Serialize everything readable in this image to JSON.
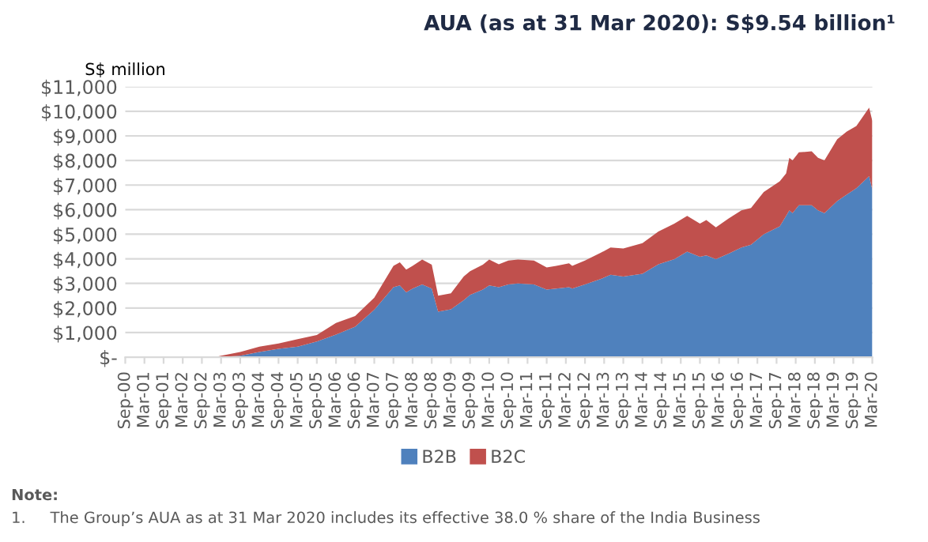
{
  "chart_data": {
    "type": "area",
    "title": "AUA (as at 31 Mar 2020): S$9.54 billion¹",
    "ylabel": "S$ million",
    "stacked": true,
    "x": [
      "2000-09",
      "2003-01",
      "2003-03",
      "2003-09",
      "2004-03",
      "2004-09",
      "2005-03",
      "2005-09",
      "2006-03",
      "2006-09",
      "2007-03",
      "2007-09",
      "2007-11",
      "2008-01",
      "2008-03",
      "2008-06",
      "2008-09",
      "2008-11",
      "2009-03",
      "2009-07",
      "2009-09",
      "2010-01",
      "2010-03",
      "2010-06",
      "2010-09",
      "2010-12",
      "2011-05",
      "2011-09",
      "2011-12",
      "2012-04",
      "2012-05",
      "2012-09",
      "2013-02",
      "2013-05",
      "2013-09",
      "2014-03",
      "2014-08",
      "2015-01",
      "2015-05",
      "2015-09",
      "2015-11",
      "2016-02",
      "2016-06",
      "2016-10",
      "2017-01",
      "2017-05",
      "2017-10",
      "2017-12",
      "2018-01",
      "2018-02",
      "2018-04",
      "2018-08",
      "2018-10",
      "2018-12",
      "2019-04",
      "2019-07",
      "2019-10",
      "2020-02",
      "2020-03"
    ],
    "series": [
      {
        "name": "B2B",
        "color": "#4f81bd",
        "values": [
          0,
          0,
          10,
          60,
          210,
          340,
          430,
          640,
          920,
          1240,
          1930,
          2850,
          2920,
          2640,
          2790,
          2960,
          2790,
          1850,
          1950,
          2320,
          2530,
          2750,
          2920,
          2850,
          2960,
          3000,
          2960,
          2750,
          2790,
          2850,
          2790,
          2960,
          3180,
          3350,
          3280,
          3390,
          3780,
          3990,
          4290,
          4080,
          4140,
          3990,
          4210,
          4460,
          4570,
          5000,
          5320,
          5750,
          5970,
          5860,
          6180,
          6180,
          5970,
          5860,
          6350,
          6610,
          6870,
          7360,
          6820
        ]
      },
      {
        "name": "B2C",
        "color": "#c0504d",
        "values": [
          0,
          0,
          50,
          150,
          220,
          220,
          300,
          260,
          470,
          430,
          490,
          860,
          940,
          920,
          920,
          1010,
          970,
          650,
          650,
          960,
          970,
          1010,
          1050,
          930,
          970,
          970,
          970,
          900,
          920,
          970,
          920,
          970,
          1070,
          1110,
          1140,
          1250,
          1330,
          1440,
          1460,
          1350,
          1440,
          1290,
          1430,
          1510,
          1500,
          1720,
          1830,
          1720,
          2140,
          2140,
          2150,
          2190,
          2140,
          2140,
          2510,
          2570,
          2530,
          2790,
          2790
        ]
      }
    ],
    "xlim": [
      "2000-09",
      "2020-03"
    ],
    "xticks": [
      {
        "value": "2000-09",
        "label": "Sep-00"
      },
      {
        "value": "2001-03",
        "label": "Mar-01"
      },
      {
        "value": "2001-09",
        "label": "Sep-01"
      },
      {
        "value": "2002-03",
        "label": "Mar-02"
      },
      {
        "value": "2002-09",
        "label": "Sep-02"
      },
      {
        "value": "2003-03",
        "label": "Mar-03"
      },
      {
        "value": "2003-09",
        "label": "Sep-03"
      },
      {
        "value": "2004-03",
        "label": "Mar-04"
      },
      {
        "value": "2004-09",
        "label": "Sep-04"
      },
      {
        "value": "2005-03",
        "label": "Mar-05"
      },
      {
        "value": "2005-09",
        "label": "Sep-05"
      },
      {
        "value": "2006-03",
        "label": "Mar-06"
      },
      {
        "value": "2006-09",
        "label": "Sep-06"
      },
      {
        "value": "2007-03",
        "label": "Mar-07"
      },
      {
        "value": "2007-09",
        "label": "Sep-07"
      },
      {
        "value": "2008-03",
        "label": "Mar-08"
      },
      {
        "value": "2008-09",
        "label": "Sep-08"
      },
      {
        "value": "2009-03",
        "label": "Mar-09"
      },
      {
        "value": "2009-09",
        "label": "Sep-09"
      },
      {
        "value": "2010-03",
        "label": "Mar-10"
      },
      {
        "value": "2010-09",
        "label": "Sep-10"
      },
      {
        "value": "2011-03",
        "label": "Mar-11"
      },
      {
        "value": "2011-09",
        "label": "Sep-11"
      },
      {
        "value": "2012-03",
        "label": "Mar-12"
      },
      {
        "value": "2012-09",
        "label": "Sep-12"
      },
      {
        "value": "2013-03",
        "label": "Mar-13"
      },
      {
        "value": "2013-09",
        "label": "Sep-13"
      },
      {
        "value": "2014-03",
        "label": "Mar-14"
      },
      {
        "value": "2014-09",
        "label": "Sep-14"
      },
      {
        "value": "2015-03",
        "label": "Mar-15"
      },
      {
        "value": "2015-09",
        "label": "Sep-15"
      },
      {
        "value": "2016-03",
        "label": "Mar-16"
      },
      {
        "value": "2016-09",
        "label": "Sep-16"
      },
      {
        "value": "2017-03",
        "label": "Mar-17"
      },
      {
        "value": "2017-09",
        "label": "Sep-17"
      },
      {
        "value": "2018-03",
        "label": "Mar-18"
      },
      {
        "value": "2018-09",
        "label": "Sep-18"
      },
      {
        "value": "2019-03",
        "label": "Mar-19"
      },
      {
        "value": "2019-09",
        "label": "Sep-19"
      },
      {
        "value": "2020-03",
        "label": "Mar-20"
      }
    ],
    "ylim": [
      0,
      11000
    ],
    "yticks": [
      {
        "value": 0,
        "label": "$-"
      },
      {
        "value": 1000,
        "label": "$1,000"
      },
      {
        "value": 2000,
        "label": "$2,000"
      },
      {
        "value": 3000,
        "label": "$3,000"
      },
      {
        "value": 4000,
        "label": "$4,000"
      },
      {
        "value": 5000,
        "label": "$5,000"
      },
      {
        "value": 6000,
        "label": "$6,000"
      },
      {
        "value": 7000,
        "label": "$7,000"
      },
      {
        "value": 8000,
        "label": "$8,000"
      },
      {
        "value": 9000,
        "label": "$9,000"
      },
      {
        "value": 10000,
        "label": "$10,000"
      },
      {
        "value": 11000,
        "label": "$11,000"
      }
    ],
    "grid": "y",
    "legend": "bottom",
    "annotations": [
      "Note:",
      "1.     The Group’s AUA as at 31 Mar 2020 includes its effective 38.0 % share of the India Business"
    ]
  }
}
